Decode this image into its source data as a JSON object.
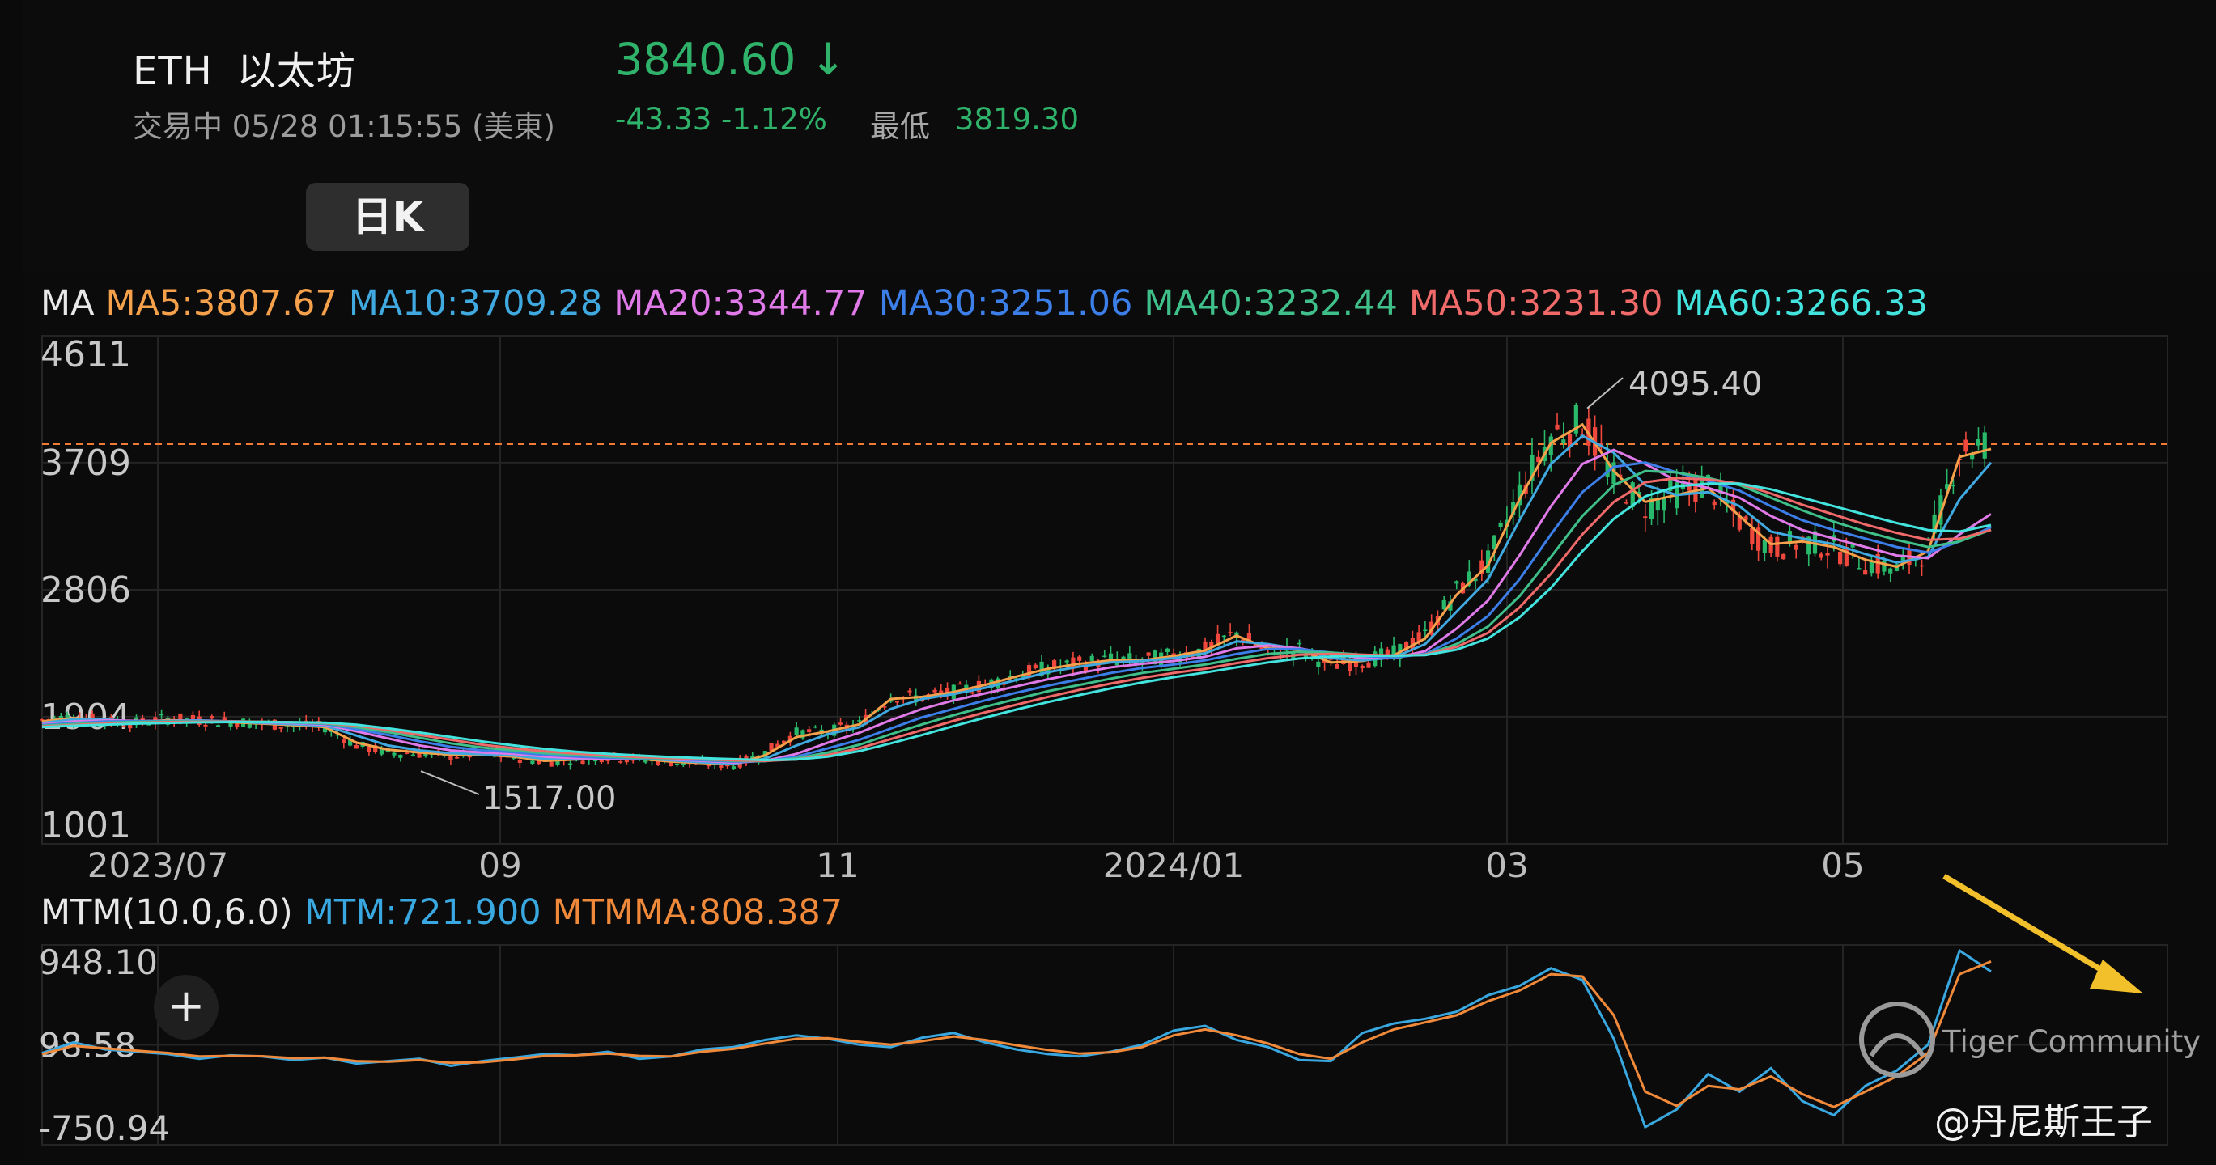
{
  "header": {
    "symbol": "ETH",
    "name": "以太坊",
    "price": "3840.60",
    "price_arrow": "↓",
    "status": "交易中 05/28 01:15:55 (美東)",
    "change": "-43.33 -1.12%",
    "low_label": "最低",
    "low_value": "3819.30"
  },
  "period_tab": "日K",
  "ma_legend": {
    "label": "MA",
    "items": [
      {
        "text": "MA5:3807.67",
        "color": "#f5a04a"
      },
      {
        "text": "MA10:3709.28",
        "color": "#3fa9e0"
      },
      {
        "text": "MA20:3344.77",
        "color": "#e07ae8"
      },
      {
        "text": "MA30:3251.06",
        "color": "#3c7fe8"
      },
      {
        "text": "MA40:3232.44",
        "color": "#3fc08a"
      },
      {
        "text": "MA50:3231.30",
        "color": "#f06a6a"
      },
      {
        "text": "MA60:3266.33",
        "color": "#43e3de"
      }
    ]
  },
  "mtm_legend": {
    "label": "MTM(10.0,6.0)",
    "mtm": {
      "text": "MTM:721.900",
      "color": "#3aa8e0"
    },
    "mtmma": {
      "text": "MTMMA:808.387",
      "color": "#f08a3a"
    }
  },
  "chart_data": [
    {
      "type": "candlestick",
      "x_ticks": [
        "2023/07",
        "09",
        "11",
        "2024/01",
        "03",
        "05"
      ],
      "y_ticks": [
        "4611",
        "3709",
        "2806",
        "1904",
        "1001"
      ],
      "ylim": [
        1001,
        4611
      ],
      "annotations": [
        {
          "text": "4095.40",
          "value": 4095.4,
          "label": "high"
        },
        {
          "text": "1517.00",
          "value": 1517.0,
          "label": "low"
        }
      ],
      "current_price_line": 3840.6,
      "series_anchor_values": {
        "close": [
          1880,
          1905,
          1870,
          1860,
          1890,
          1880,
          1870,
          1855,
          1840,
          1830,
          1700,
          1650,
          1640,
          1625,
          1635,
          1615,
          1580,
          1600,
          1620,
          1600,
          1580,
          1570,
          1560,
          1650,
          1790,
          1800,
          1850,
          2050,
          2040,
          2080,
          2130,
          2200,
          2250,
          2280,
          2310,
          2300,
          2340,
          2380,
          2500,
          2360,
          2380,
          2270,
          2300,
          2350,
          2480,
          2800,
          3000,
          3500,
          3900,
          4000,
          3600,
          3400,
          3500,
          3550,
          3300,
          3100,
          3150,
          3100,
          3000,
          2950,
          3100,
          3800,
          3850
        ],
        "ma_lines": [
          {
            "name": "MA5",
            "color": "#f5a04a",
            "values": [
              1870,
              1895,
              1880,
              1865,
              1880,
              1875,
              1865,
              1855,
              1845,
              1830,
              1720,
              1670,
              1650,
              1635,
              1635,
              1620,
              1590,
              1600,
              1615,
              1605,
              1585,
              1575,
              1565,
              1630,
              1760,
              1800,
              1850,
              2030,
              2045,
              2080,
              2130,
              2190,
              2245,
              2280,
              2305,
              2305,
              2335,
              2375,
              2480,
              2390,
              2380,
              2290,
              2300,
              2340,
              2460,
              2770,
              2980,
              3450,
              3850,
              3980,
              3650,
              3430,
              3480,
              3530,
              3330,
              3130,
              3150,
              3110,
              3020,
              2970,
              3080,
              3750,
              3807
            ]
          },
          {
            "name": "MA10",
            "color": "#3fa9e0",
            "values": [
              1860,
              1885,
              1885,
              1870,
              1875,
              1878,
              1870,
              1860,
              1850,
              1840,
              1770,
              1700,
              1665,
              1645,
              1638,
              1628,
              1605,
              1600,
              1608,
              1608,
              1595,
              1580,
              1570,
              1605,
              1700,
              1780,
              1830,
              1960,
              2030,
              2065,
              2110,
              2165,
              2220,
              2260,
              2290,
              2300,
              2320,
              2355,
              2440,
              2420,
              2385,
              2320,
              2305,
              2325,
              2420,
              2650,
              2880,
              3300,
              3700,
              3900,
              3780,
              3550,
              3480,
              3500,
              3400,
              3220,
              3170,
              3130,
              3060,
              3000,
              3040,
              3450,
              3709
            ]
          },
          {
            "name": "MA20",
            "color": "#e07ae8",
            "values": [
              1850,
              1870,
              1878,
              1875,
              1873,
              1874,
              1872,
              1865,
              1858,
              1848,
              1800,
              1750,
              1700,
              1665,
              1650,
              1640,
              1620,
              1610,
              1606,
              1606,
              1600,
              1590,
              1578,
              1590,
              1640,
              1720,
              1790,
              1880,
              1960,
              2020,
              2070,
              2120,
              2170,
              2215,
              2255,
              2280,
              2300,
              2330,
              2390,
              2410,
              2390,
              2350,
              2320,
              2320,
              2370,
              2530,
              2730,
              3050,
              3400,
              3700,
              3800,
              3700,
              3580,
              3530,
              3460,
              3330,
              3230,
              3170,
              3110,
              3050,
              3030,
              3200,
              3344
            ]
          },
          {
            "name": "MA30",
            "color": "#3c7fe8",
            "values": [
              1845,
              1860,
              1870,
              1872,
              1872,
              1873,
              1872,
              1868,
              1862,
              1853,
              1815,
              1775,
              1730,
              1690,
              1665,
              1652,
              1633,
              1620,
              1612,
              1608,
              1604,
              1596,
              1585,
              1588,
              1620,
              1680,
              1740,
              1820,
              1900,
              1960,
              2020,
              2075,
              2125,
              2170,
              2215,
              2250,
              2275,
              2305,
              2350,
              2385,
              2385,
              2360,
              2335,
              2325,
              2350,
              2460,
              2620,
              2880,
              3200,
              3500,
              3680,
              3710,
              3640,
              3580,
              3510,
              3400,
              3300,
              3230,
              3170,
              3110,
              3070,
              3150,
              3251
            ]
          },
          {
            "name": "MA40",
            "color": "#3fc08a",
            "values": [
              1840,
              1852,
              1862,
              1868,
              1870,
              1871,
              1871,
              1869,
              1864,
              1857,
              1830,
              1795,
              1755,
              1715,
              1685,
              1665,
              1645,
              1632,
              1620,
              1612,
              1607,
              1600,
              1590,
              1588,
              1608,
              1650,
              1705,
              1780,
              1850,
              1915,
              1975,
              2030,
              2085,
              2130,
              2175,
              2215,
              2245,
              2275,
              2315,
              2350,
              2365,
              2360,
              2345,
              2335,
              2345,
              2420,
              2545,
              2760,
              3040,
              3330,
              3550,
              3650,
              3640,
              3600,
              3550,
              3460,
              3370,
              3290,
              3220,
              3160,
              3110,
              3150,
              3232
            ]
          },
          {
            "name": "MA50",
            "color": "#f06a6a",
            "values": [
              1835,
              1845,
              1855,
              1862,
              1866,
              1868,
              1869,
              1868,
              1865,
              1860,
              1840,
              1810,
              1775,
              1740,
              1705,
              1680,
              1658,
              1642,
              1628,
              1618,
              1610,
              1603,
              1595,
              1590,
              1600,
              1632,
              1680,
              1745,
              1810,
              1875,
              1935,
              1990,
              2045,
              2095,
              2140,
              2180,
              2215,
              2245,
              2285,
              2320,
              2345,
              2350,
              2345,
              2340,
              2345,
              2400,
              2500,
              2680,
              2920,
              3200,
              3430,
              3570,
              3600,
              3590,
              3560,
              3490,
              3410,
              3340,
              3270,
              3210,
              3160,
              3170,
              3231
            ]
          },
          {
            "name": "MA60",
            "color": "#43e3de",
            "values": [
              1830,
              1840,
              1848,
              1855,
              1860,
              1864,
              1866,
              1866,
              1865,
              1862,
              1848,
              1822,
              1792,
              1760,
              1728,
              1700,
              1675,
              1655,
              1640,
              1628,
              1618,
              1610,
              1602,
              1596,
              1600,
              1620,
              1660,
              1715,
              1775,
              1838,
              1898,
              1955,
              2008,
              2058,
              2105,
              2148,
              2185,
              2218,
              2255,
              2290,
              2318,
              2332,
              2336,
              2338,
              2342,
              2380,
              2460,
              2610,
              2820,
              3080,
              3310,
              3470,
              3540,
              3560,
              3560,
              3520,
              3460,
              3400,
              3340,
              3280,
              3230,
              3220,
              3266
            ]
          }
        ]
      }
    },
    {
      "type": "line",
      "y_ticks": [
        "948.10",
        "98.58",
        "-750.94"
      ],
      "ylim": [
        -750.94,
        948.1
      ],
      "series": [
        {
          "name": "MTM",
          "color": "#3aa8e0",
          "values": [
            30,
            120,
            60,
            40,
            20,
            -20,
            10,
            0,
            -30,
            -10,
            -60,
            -40,
            -20,
            -80,
            -40,
            -10,
            20,
            10,
            40,
            -20,
            0,
            60,
            80,
            140,
            180,
            150,
            100,
            80,
            160,
            200,
            120,
            60,
            20,
            0,
            40,
            100,
            220,
            260,
            140,
            80,
            -30,
            -40,
            200,
            280,
            320,
            380,
            520,
            600,
            750,
            650,
            150,
            -600,
            -450,
            -150,
            -300,
            -100,
            -380,
            -500,
            -250,
            -120,
            100,
            900,
            722
          ]
        },
        {
          "name": "MTMMA",
          "color": "#f08a3a",
          "values": [
            20,
            90,
            70,
            50,
            30,
            0,
            5,
            2,
            -15,
            -10,
            -40,
            -45,
            -30,
            -55,
            -50,
            -25,
            5,
            10,
            25,
            5,
            0,
            40,
            65,
            110,
            150,
            155,
            125,
            100,
            130,
            170,
            140,
            95,
            55,
            25,
            35,
            80,
            180,
            230,
            180,
            110,
            20,
            -20,
            120,
            230,
            290,
            350,
            470,
            560,
            700,
            680,
            350,
            -300,
            -420,
            -250,
            -280,
            -170,
            -320,
            -430,
            -300,
            -170,
            30,
            700,
            808
          ]
        }
      ]
    }
  ],
  "overlay": {
    "add_button": "+",
    "watermark_text": "Tiger Community",
    "author": "@丹尼斯王子"
  }
}
